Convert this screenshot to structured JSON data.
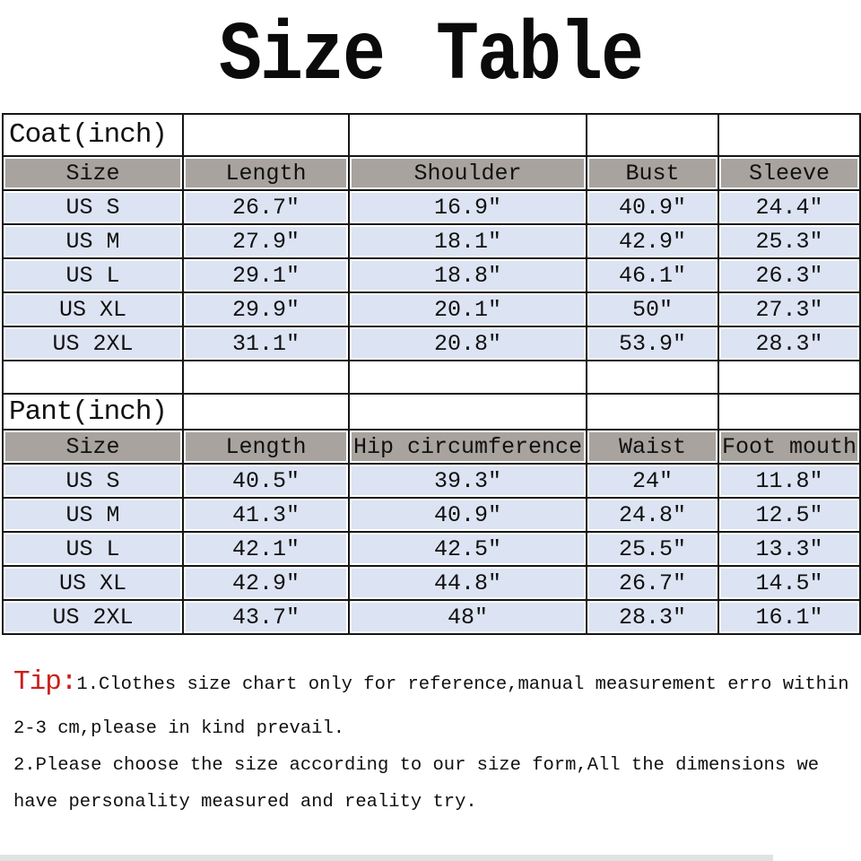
{
  "title": "Size Table",
  "coat": {
    "section_label": "Coat(inch)",
    "headers": [
      "Size",
      "Length",
      "Shoulder",
      "Bust",
      "Sleeve"
    ],
    "rows": [
      [
        "US S",
        "26.7″",
        "16.9″",
        "40.9″",
        "24.4″"
      ],
      [
        "US M",
        "27.9″",
        "18.1″",
        "42.9″",
        "25.3″"
      ],
      [
        "US L",
        "29.1″",
        "18.8″",
        "46.1″",
        "26.3″"
      ],
      [
        "US XL",
        "29.9″",
        "20.1″",
        "50″",
        "27.3″"
      ],
      [
        "US 2XL",
        "31.1″",
        "20.8″",
        "53.9″",
        "28.3″"
      ]
    ]
  },
  "pant": {
    "section_label": "Pant(inch)",
    "headers": [
      "Size",
      "Length",
      "Hip circumference",
      "Waist",
      "Foot mouth"
    ],
    "rows": [
      [
        "US S",
        "40.5″",
        "39.3″",
        "24″",
        "11.8″"
      ],
      [
        "US M",
        "41.3″",
        "40.9″",
        "24.8″",
        "12.5″"
      ],
      [
        "US L",
        "42.1″",
        "42.5″",
        "25.5″",
        "13.3″"
      ],
      [
        "US XL",
        "42.9″",
        "44.8″",
        "26.7″",
        "14.5″"
      ],
      [
        "US 2XL",
        "43.7″",
        "48″",
        "28.3″",
        "16.1″"
      ]
    ]
  },
  "tip": {
    "label": "Tip:",
    "line1": "1.Clothes size chart only for reference,manual measurement erro within",
    "line2": "2-3 cm,please in kind prevail.",
    "line3": "2.Please choose the size according to our size form,All the dimensions we",
    "line4": "have personality measured and reality try."
  },
  "colors": {
    "header_bg": "#a8a39e",
    "row_bg": "#dce3f2",
    "border": "#161616",
    "tip_red": "#cb1f1a"
  }
}
